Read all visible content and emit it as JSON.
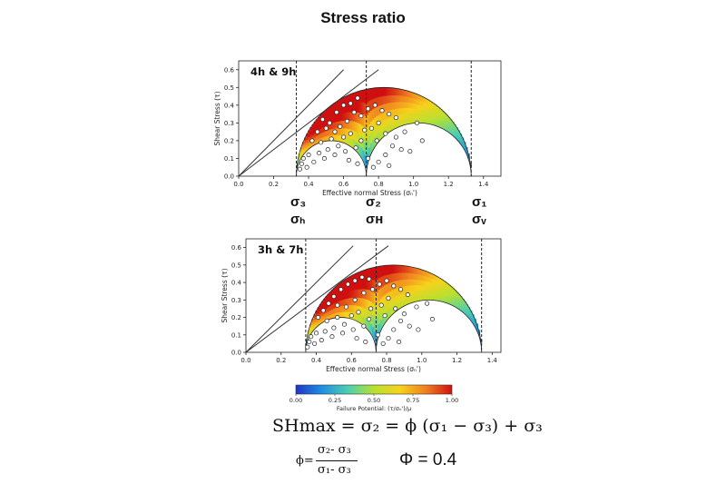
{
  "page": {
    "title": "Stress ratio",
    "formula_main": "SHmax = σ₂ = ϕ (σ₁ − σ₃) + σ₃",
    "formula_phi_lhs": "ϕ=",
    "formula_phi_num": "σ₂- σ₃",
    "formula_phi_den": "σ₁- σ₃",
    "formula_phi_value": "Φ = 0.4"
  },
  "stress_labels": [
    {
      "top": "σ₃",
      "bottom": "σₕ"
    },
    {
      "top": "σ₂",
      "bottom": "σʜ"
    },
    {
      "top": "σ₁",
      "bottom": "σᵥ"
    }
  ],
  "colorbar": {
    "label": "Failure Potential: (τ/σₙ')/μ",
    "ticks": [
      "0.00",
      "0.25",
      "0.50",
      "0.75",
      "1.00"
    ],
    "colors": [
      "#1f33c8",
      "#1f8fe0",
      "#4ccfb0",
      "#b8e030",
      "#f7d21c",
      "#f08020",
      "#d01010"
    ]
  },
  "chart_data": [
    {
      "type": "scatter",
      "title": "",
      "panel_label": "4h & 9h",
      "xlabel": "Effective normal Stress (σₙ')",
      "ylabel": "Shear Stress (τ)",
      "xlim": [
        0.0,
        1.5
      ],
      "ylim": [
        0.0,
        0.65
      ],
      "xticks": [
        "0.0",
        "0.2",
        "0.4",
        "0.6",
        "0.8",
        "1.0",
        "1.2",
        "1.4"
      ],
      "yticks": [
        "0.0",
        "0.1",
        "0.2",
        "0.3",
        "0.4",
        "0.5",
        "0.6"
      ],
      "sigma": {
        "sigma3": 0.33,
        "sigma2": 0.73,
        "sigma1": 1.33
      },
      "friction_lines": [
        {
          "slope": 1.0,
          "x": [
            0.0,
            0.6
          ],
          "y": [
            0.0,
            0.6
          ]
        },
        {
          "slope": 0.75,
          "x": [
            0.0,
            0.8
          ],
          "y": [
            0.0,
            0.6
          ]
        }
      ],
      "points": [
        [
          0.48,
          0.32
        ],
        [
          0.52,
          0.3
        ],
        [
          0.56,
          0.36
        ],
        [
          0.6,
          0.4
        ],
        [
          0.64,
          0.41
        ],
        [
          0.68,
          0.44
        ],
        [
          0.5,
          0.27
        ],
        [
          0.55,
          0.25
        ],
        [
          0.45,
          0.25
        ],
        [
          0.42,
          0.2
        ],
        [
          0.47,
          0.19
        ],
        [
          0.53,
          0.21
        ],
        [
          0.58,
          0.28
        ],
        [
          0.62,
          0.31
        ],
        [
          0.66,
          0.36
        ],
        [
          0.7,
          0.34
        ],
        [
          0.74,
          0.38
        ],
        [
          0.78,
          0.4
        ],
        [
          0.82,
          0.37
        ],
        [
          0.86,
          0.35
        ],
        [
          0.9,
          0.33
        ],
        [
          0.8,
          0.3
        ],
        [
          0.76,
          0.27
        ],
        [
          0.84,
          0.24
        ],
        [
          0.9,
          0.22
        ],
        [
          0.95,
          0.25
        ],
        [
          0.88,
          0.17
        ],
        [
          0.93,
          0.15
        ],
        [
          0.84,
          0.12
        ],
        [
          0.98,
          0.14
        ],
        [
          0.79,
          0.2
        ],
        [
          0.72,
          0.26
        ],
        [
          0.64,
          0.24
        ],
        [
          0.6,
          0.22
        ],
        [
          0.57,
          0.17
        ],
        [
          0.51,
          0.15
        ],
        [
          0.46,
          0.13
        ],
        [
          0.4,
          0.12
        ],
        [
          0.37,
          0.1
        ],
        [
          0.36,
          0.07
        ],
        [
          0.35,
          0.04
        ],
        [
          0.39,
          0.05
        ],
        [
          0.43,
          0.08
        ],
        [
          0.49,
          0.1
        ],
        [
          0.55,
          0.12
        ],
        [
          0.61,
          0.14
        ],
        [
          0.67,
          0.16
        ],
        [
          0.7,
          0.2
        ],
        [
          0.74,
          0.1
        ],
        [
          0.77,
          0.05
        ],
        [
          0.8,
          0.08
        ],
        [
          0.86,
          0.06
        ],
        [
          1.02,
          0.3
        ],
        [
          1.05,
          0.2
        ],
        [
          0.68,
          0.07
        ],
        [
          0.63,
          0.09
        ]
      ]
    },
    {
      "type": "scatter",
      "title": "",
      "panel_label": "3h & 7h",
      "xlabel": "Effective normal Stress (σₙ')",
      "ylabel": "Shear Stress (τ)",
      "xlim": [
        0.0,
        1.45
      ],
      "ylim": [
        0.0,
        0.65
      ],
      "xticks": [
        "0.0",
        "0.2",
        "0.4",
        "0.6",
        "0.8",
        "1.0",
        "1.2",
        "1.4"
      ],
      "yticks": [
        "0.0",
        "0.1",
        "0.2",
        "0.3",
        "0.4",
        "0.5",
        "0.6"
      ],
      "sigma": {
        "sigma3": 0.34,
        "sigma2": 0.74,
        "sigma1": 1.34
      },
      "friction_lines": [
        {
          "slope": 1.0,
          "x": [
            0.0,
            0.61
          ],
          "y": [
            0.0,
            0.61
          ]
        },
        {
          "slope": 0.75,
          "x": [
            0.0,
            0.81
          ],
          "y": [
            0.0,
            0.61
          ]
        }
      ],
      "points": [
        [
          0.5,
          0.32
        ],
        [
          0.54,
          0.36
        ],
        [
          0.58,
          0.39
        ],
        [
          0.62,
          0.41
        ],
        [
          0.66,
          0.43
        ],
        [
          0.7,
          0.42
        ],
        [
          0.47,
          0.28
        ],
        [
          0.52,
          0.27
        ],
        [
          0.44,
          0.24
        ],
        [
          0.41,
          0.2
        ],
        [
          0.46,
          0.18
        ],
        [
          0.52,
          0.2
        ],
        [
          0.57,
          0.26
        ],
        [
          0.62,
          0.3
        ],
        [
          0.67,
          0.34
        ],
        [
          0.72,
          0.36
        ],
        [
          0.76,
          0.39
        ],
        [
          0.8,
          0.41
        ],
        [
          0.84,
          0.38
        ],
        [
          0.88,
          0.36
        ],
        [
          0.92,
          0.33
        ],
        [
          0.81,
          0.31
        ],
        [
          0.77,
          0.27
        ],
        [
          0.85,
          0.25
        ],
        [
          0.9,
          0.22
        ],
        [
          0.97,
          0.26
        ],
        [
          0.88,
          0.18
        ],
        [
          0.93,
          0.15
        ],
        [
          0.84,
          0.13
        ],
        [
          0.98,
          0.13
        ],
        [
          0.79,
          0.21
        ],
        [
          0.71,
          0.25
        ],
        [
          0.64,
          0.23
        ],
        [
          0.6,
          0.21
        ],
        [
          0.56,
          0.16
        ],
        [
          0.5,
          0.14
        ],
        [
          0.45,
          0.12
        ],
        [
          0.4,
          0.11
        ],
        [
          0.37,
          0.09
        ],
        [
          0.36,
          0.06
        ],
        [
          0.35,
          0.03
        ],
        [
          0.39,
          0.05
        ],
        [
          0.43,
          0.07
        ],
        [
          0.49,
          0.09
        ],
        [
          0.55,
          0.11
        ],
        [
          0.61,
          0.13
        ],
        [
          0.67,
          0.15
        ],
        [
          0.7,
          0.19
        ],
        [
          0.75,
          0.1
        ],
        [
          0.78,
          0.05
        ],
        [
          0.81,
          0.08
        ],
        [
          0.87,
          0.06
        ],
        [
          1.03,
          0.28
        ],
        [
          1.06,
          0.19
        ],
        [
          0.68,
          0.06
        ],
        [
          0.63,
          0.08
        ]
      ]
    }
  ]
}
